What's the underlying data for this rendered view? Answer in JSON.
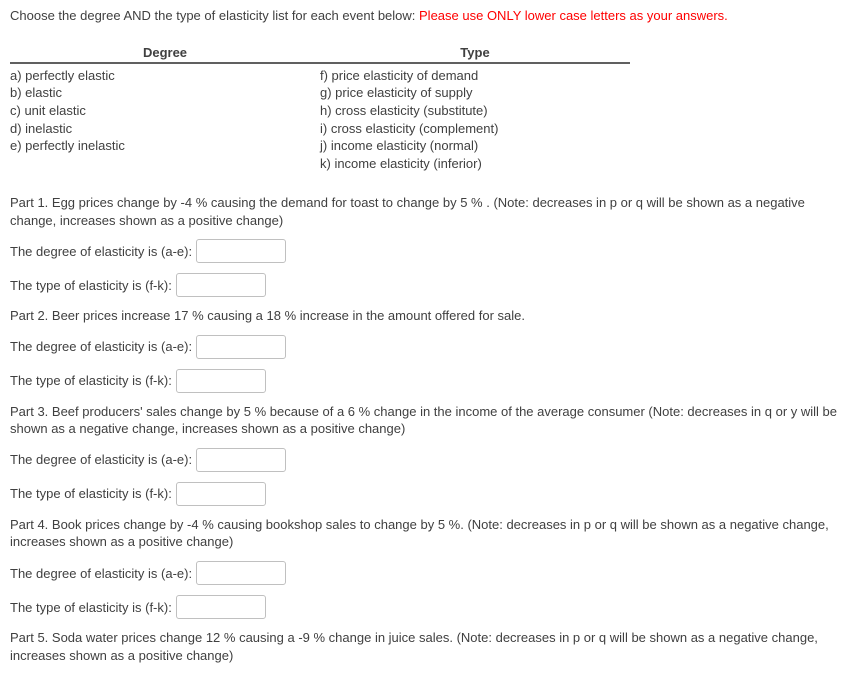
{
  "instruction": {
    "lead": "Choose the degree AND the type of elasticity list for each event below: ",
    "warning": "Please use ONLY lower case letters as your answers."
  },
  "table": {
    "degree": {
      "header": "Degree",
      "items": [
        "a) perfectly elastic",
        "b) elastic",
        "c) unit elastic",
        "d) inelastic",
        "e) perfectly inelastic"
      ]
    },
    "type": {
      "header": "Type",
      "items": [
        "f) price elasticity of demand",
        "g) price elasticity of supply",
        "h) cross elasticity (substitute)",
        "i) cross elasticity (complement)",
        "j) income elasticity (normal)",
        "k) income elasticity (inferior)"
      ]
    }
  },
  "labels": {
    "degree": "The degree of elasticity is (a-e): ",
    "type": "The type of elasticity is (f-k): "
  },
  "parts": [
    {
      "text": "Part 1. Egg prices change by -4 % causing the demand for toast to change by 5 % .  (Note:  decreases in p or q will be shown as a negative change, increases shown as a positive change)",
      "degree_value": "",
      "type_value": ""
    },
    {
      "text": "Part 2. Beer prices increase 17 % causing a 18 % increase in the amount offered for sale.",
      "degree_value": "",
      "type_value": ""
    },
    {
      "text": "Part 3. Beef producers' sales change by 5 % because of a 6 % change in the income of the average consumer  (Note:  decreases in q or y will be shown as a negative change, increases shown as a positive change)",
      "degree_value": "",
      "type_value": ""
    },
    {
      "text": "Part 4. Book prices change by -4 % causing bookshop sales to change by 5 %.  (Note:  decreases in p or q will be shown as a negative change, increases shown as a positive change)",
      "degree_value": "",
      "type_value": ""
    },
    {
      "text": "Part 5. Soda water prices change 12 % causing a -9 % change in juice sales.  (Note:  decreases in p or q will be shown as a negative change, increases shown as a positive change)",
      "degree_value": "",
      "type_value": ""
    }
  ]
}
